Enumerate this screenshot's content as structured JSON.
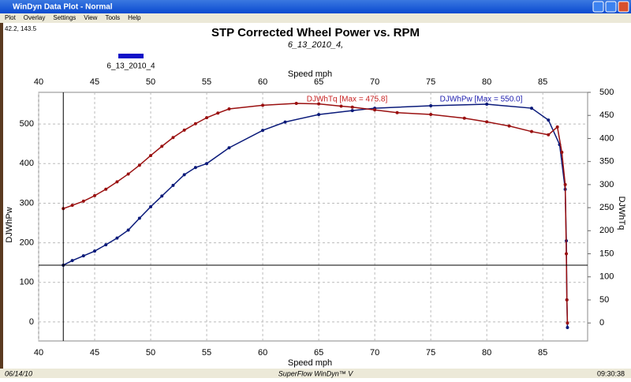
{
  "window": {
    "title": "WinDyn Data Plot - Normal",
    "menu": [
      "Plot",
      "Overlay",
      "Settings",
      "View",
      "Tools",
      "Help"
    ]
  },
  "status": {
    "readout": "42.2, 143.5",
    "date": "06/14/10",
    "product": "SuperFlow WinDyn™ V",
    "time": "09:30:38"
  },
  "chart_data": {
    "type": "line",
    "title": "STP Corrected Wheel Power vs. RPM",
    "subtitle": "6_13_2010_4,",
    "legend_label": "6_13_2010_4",
    "legend_color": "#1010c8",
    "x_label": "Speed   mph",
    "y_label": "DJWhPw",
    "y2_label": "DJWhTq",
    "annotations": [
      {
        "text": "DJWhTq [Max = 475.8]",
        "color": "#c82020"
      },
      {
        "text": "DJWhPw [Max = 550.0]",
        "color": "#2020b0"
      }
    ],
    "cursor": {
      "x": 42.2,
      "y": 143.5
    },
    "xlim": [
      40,
      89
    ],
    "xticks": [
      40,
      45,
      50,
      55,
      60,
      65,
      70,
      75,
      80,
      85
    ],
    "ylim": [
      -48,
      580
    ],
    "yticks": [
      0,
      100,
      200,
      300,
      400,
      500
    ],
    "y2lim": [
      -39,
      500
    ],
    "y2ticks": [
      0,
      50,
      100,
      150,
      200,
      250,
      300,
      350,
      400,
      450,
      500
    ],
    "grid": true,
    "series": [
      {
        "name": "DJWhPw",
        "color": "#0a1a7a",
        "axis": "y",
        "x": [
          42.2,
          43,
          44,
          45,
          46,
          47,
          48,
          49,
          50,
          51,
          52,
          53,
          54,
          55,
          57,
          60,
          62,
          65,
          68,
          70,
          75,
          80,
          84,
          85.5,
          86.5,
          87,
          87.1,
          87.15,
          87.2
        ],
        "values": [
          143.5,
          155,
          167,
          179,
          195,
          212,
          232,
          262,
          291,
          318,
          345,
          372,
          390,
          400,
          440,
          484,
          505,
          524,
          534,
          540,
          546,
          550,
          540,
          510,
          448,
          335,
          205,
          56,
          -14
        ]
      },
      {
        "name": "DJWhTq",
        "color": "#9a1010",
        "axis": "y2",
        "x": [
          42.2,
          43,
          44,
          45,
          46,
          47,
          48,
          49,
          50,
          51,
          52,
          53,
          54,
          55,
          56,
          57,
          60,
          63,
          65,
          67,
          68,
          70,
          72,
          75,
          78,
          80,
          82,
          84,
          85.5,
          86.3,
          86.7,
          87,
          87.1,
          87.15,
          87.2
        ],
        "values": [
          248,
          255,
          264,
          276,
          290,
          306,
          323,
          342,
          363,
          383,
          402,
          418,
          432,
          445,
          455,
          464,
          472,
          476,
          475,
          470,
          468,
          462,
          456,
          452,
          444,
          436,
          427,
          415,
          408,
          425,
          370,
          300,
          150,
          50,
          0
        ]
      }
    ]
  }
}
